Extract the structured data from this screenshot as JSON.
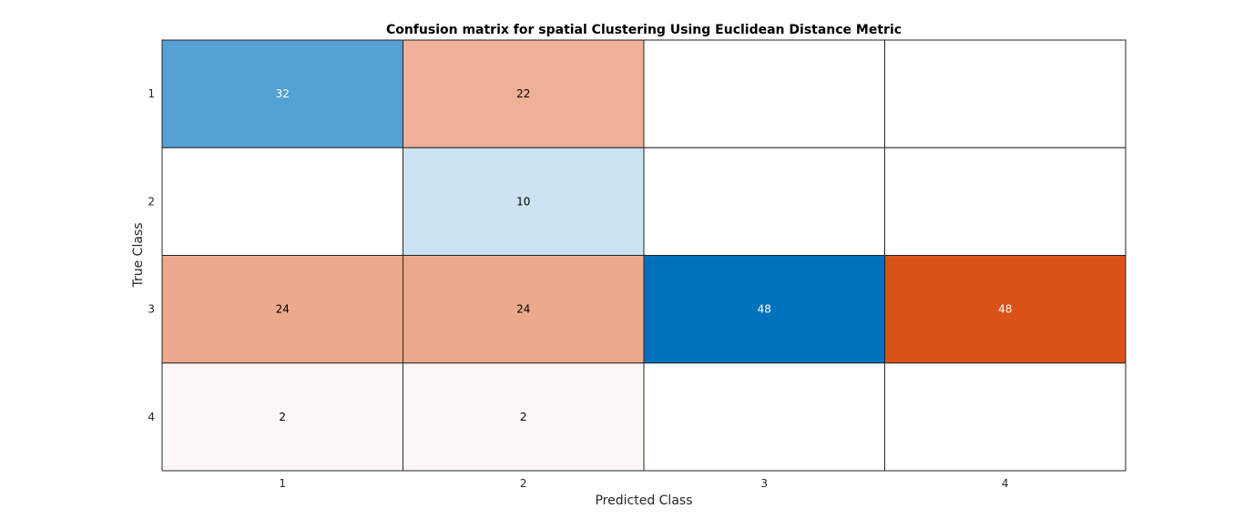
{
  "chart_data": {
    "type": "heatmap",
    "title": "Confusion matrix for spatial Clustering Using Euclidean Distance Metric",
    "xlabel": "Predicted Class",
    "ylabel": "True Class",
    "x_tick_labels": [
      "1",
      "2",
      "3",
      "4"
    ],
    "y_tick_labels": [
      "1",
      "2",
      "3",
      "4"
    ],
    "matrix": [
      [
        32,
        22,
        0,
        0
      ],
      [
        0,
        10,
        0,
        0
      ],
      [
        24,
        24,
        48,
        48
      ],
      [
        2,
        2,
        0,
        0
      ]
    ],
    "colors": {
      "diagonal": "#0072bd",
      "off_diagonal": "#d95319",
      "zero": "#ffffff",
      "grid": "#262626",
      "text_dark": "#000000",
      "text_light": "#ffffff"
    }
  }
}
